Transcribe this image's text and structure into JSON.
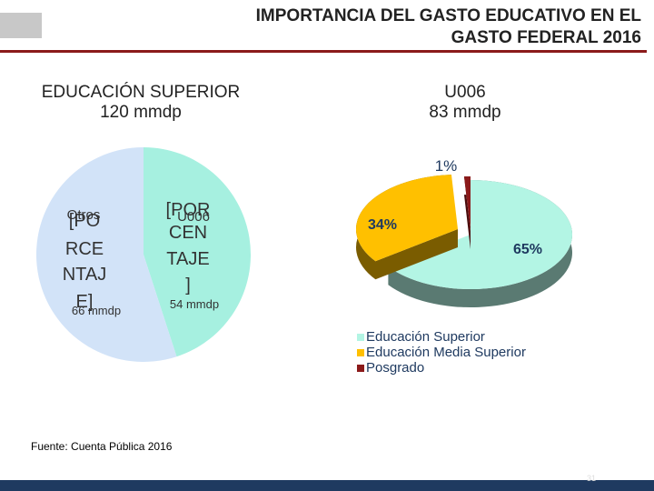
{
  "slide": {
    "title_line1": "IMPORTANCIA DEL GASTO EDUCATIVO EN EL",
    "title_line2": "GASTO FEDERAL 2016",
    "left_heading_line1": "EDUCACIÓN SUPERIOR",
    "left_heading_line2": "120 mmdp",
    "right_heading_line1": "U006",
    "right_heading_line2": "83 mmdp",
    "source": "Fuente: Cuenta Pública 2016",
    "page_number": "31"
  },
  "colors": {
    "title_rule": "#8b1a1a",
    "footer": "#1f3a60",
    "legend_text": "#1f3a60"
  },
  "chart_data": [
    {
      "type": "pie",
      "title": "",
      "slices": [
        {
          "name_line1": "U006",
          "name_line2": "54 mmdp",
          "value": 54,
          "color": "#a6f0e0",
          "label_lines": [
            "[POR",
            "CEN",
            "TAJE",
            "]"
          ]
        },
        {
          "name_line1": "Otros",
          "name_line2": "66 mmdp",
          "value": 66,
          "color": "#d2e3f8",
          "label_lines": [
            "[PO",
            "RCE",
            "NTAJ",
            "E]"
          ]
        }
      ]
    },
    {
      "type": "pie",
      "style": "3d",
      "title": "",
      "slices": [
        {
          "name": "Educación Superior",
          "value": 65,
          "label": "65%",
          "color": "#b3f5e4",
          "side_color": "#5a7a72"
        },
        {
          "name": "Educación Media Superior",
          "value": 34,
          "label": "34%",
          "color": "#ffc000",
          "side_color": "#7a5c00"
        },
        {
          "name": "Posgrado",
          "value": 1,
          "label": "1%",
          "color": "#8b1a1a",
          "side_color": "#4a0d0d"
        }
      ],
      "legend_position": "bottom-right"
    }
  ]
}
